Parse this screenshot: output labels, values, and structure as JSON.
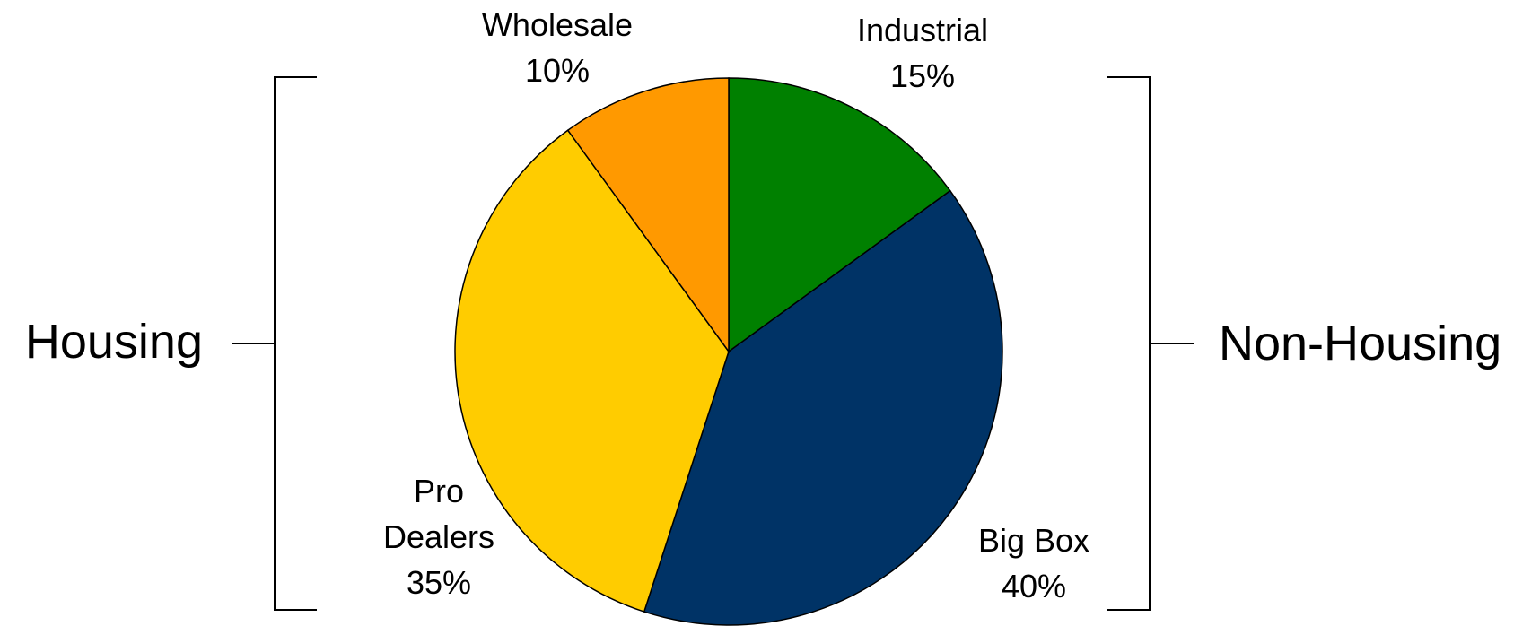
{
  "chart_data": {
    "type": "pie",
    "title": "",
    "slices": [
      {
        "label_lines": [
          "Industrial",
          "15%"
        ],
        "value": 15,
        "color": "#008000"
      },
      {
        "label_lines": [
          "Big Box",
          "40%"
        ],
        "value": 40,
        "color": "#003366"
      },
      {
        "label_lines": [
          "Pro",
          "Dealers",
          "35%"
        ],
        "value": 35,
        "color": "#FFCC00"
      },
      {
        "label_lines": [
          "Wholesale",
          "10%"
        ],
        "value": 10,
        "color": "#FF9900"
      }
    ],
    "groups": {
      "left": {
        "label": "Housing",
        "slices": [
          "Pro Dealers",
          "Wholesale"
        ]
      },
      "right": {
        "label": "Non-Housing",
        "slices": [
          "Industrial",
          "Big Box"
        ]
      }
    }
  }
}
